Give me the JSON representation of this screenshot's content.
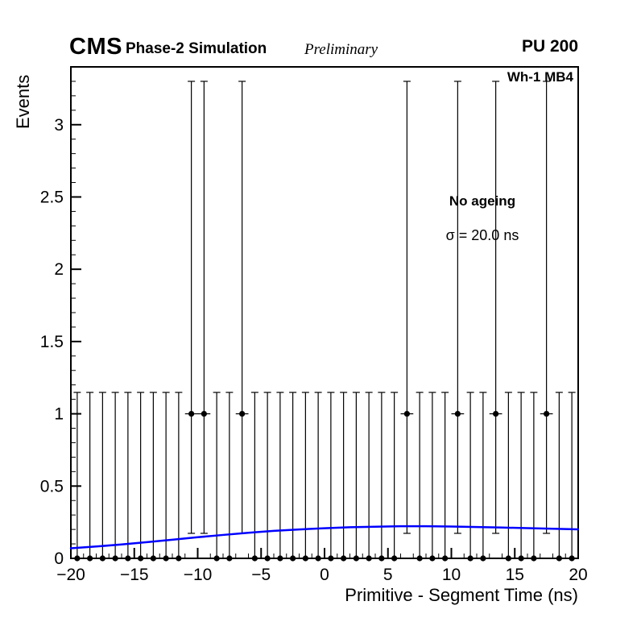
{
  "header": {
    "experiment": "CMS",
    "label": "Phase-2 Simulation",
    "sublabel": "Preliminary",
    "right_label": "PU 200"
  },
  "annotations": {
    "chamber": "Wh-1 MB4",
    "ageing": "No ageing",
    "sigma": "σ = 20.0 ns"
  },
  "chart_data": {
    "type": "scatter",
    "title": "",
    "xlabel": "Primitive - Segment Time (ns)",
    "ylabel": "Events",
    "xlim": [
      -20,
      20
    ],
    "ylim": [
      0,
      3.4
    ],
    "grid": false,
    "legend_position": "none",
    "x_major_ticks": [
      -20,
      -15,
      -10,
      -5,
      0,
      5,
      10,
      15,
      20
    ],
    "x_tick_labels": [
      "−20",
      "−15",
      "−10",
      "−5",
      "0",
      "5",
      "10",
      "15",
      "20"
    ],
    "x_minor_step": 1,
    "y_major_ticks": [
      0,
      0.5,
      1,
      1.5,
      2,
      2.5,
      3
    ],
    "y_tick_labels": [
      "0",
      "0.5",
      "1",
      "1.5",
      "2",
      "2.5",
      "3"
    ],
    "y_minor_step": 0.1,
    "points": {
      "marker": "filled-circle",
      "color": "#000000",
      "bin_width": 1,
      "x_error": 0.5,
      "err_up_count0": 1.148,
      "err_down_count0": 0,
      "err_up_count1": 2.3,
      "err_down_count1": 0.827,
      "bin_centers": [
        -19.5,
        -18.5,
        -17.5,
        -16.5,
        -15.5,
        -14.5,
        -13.5,
        -12.5,
        -11.5,
        -10.5,
        -9.5,
        -8.5,
        -7.5,
        -6.5,
        -5.5,
        -4.5,
        -3.5,
        -2.5,
        -1.5,
        -0.5,
        0.5,
        1.5,
        2.5,
        3.5,
        4.5,
        5.5,
        6.5,
        7.5,
        8.5,
        9.5,
        10.5,
        11.5,
        12.5,
        13.5,
        14.5,
        15.5,
        16.5,
        17.5,
        18.5,
        19.5
      ],
      "counts": [
        0,
        0,
        0,
        0,
        0,
        0,
        0,
        0,
        0,
        1,
        1,
        0,
        0,
        1,
        0,
        0,
        0,
        0,
        0,
        0,
        0,
        0,
        0,
        0,
        0,
        0,
        1,
        0,
        0,
        0,
        1,
        0,
        0,
        1,
        0,
        0,
        0,
        1,
        0,
        0
      ]
    },
    "fit_line": {
      "color": "#0000ff",
      "x": [
        -20,
        -18,
        -16,
        -14,
        -12,
        -10,
        -8,
        -6,
        -4,
        -2,
        0,
        2,
        4,
        6,
        8,
        10,
        12,
        14,
        16,
        18,
        20
      ],
      "y": [
        0.07,
        0.082,
        0.096,
        0.112,
        0.129,
        0.146,
        0.162,
        0.177,
        0.19,
        0.2,
        0.208,
        0.215,
        0.219,
        0.222,
        0.222,
        0.22,
        0.217,
        0.213,
        0.209,
        0.205,
        0.201
      ]
    }
  }
}
